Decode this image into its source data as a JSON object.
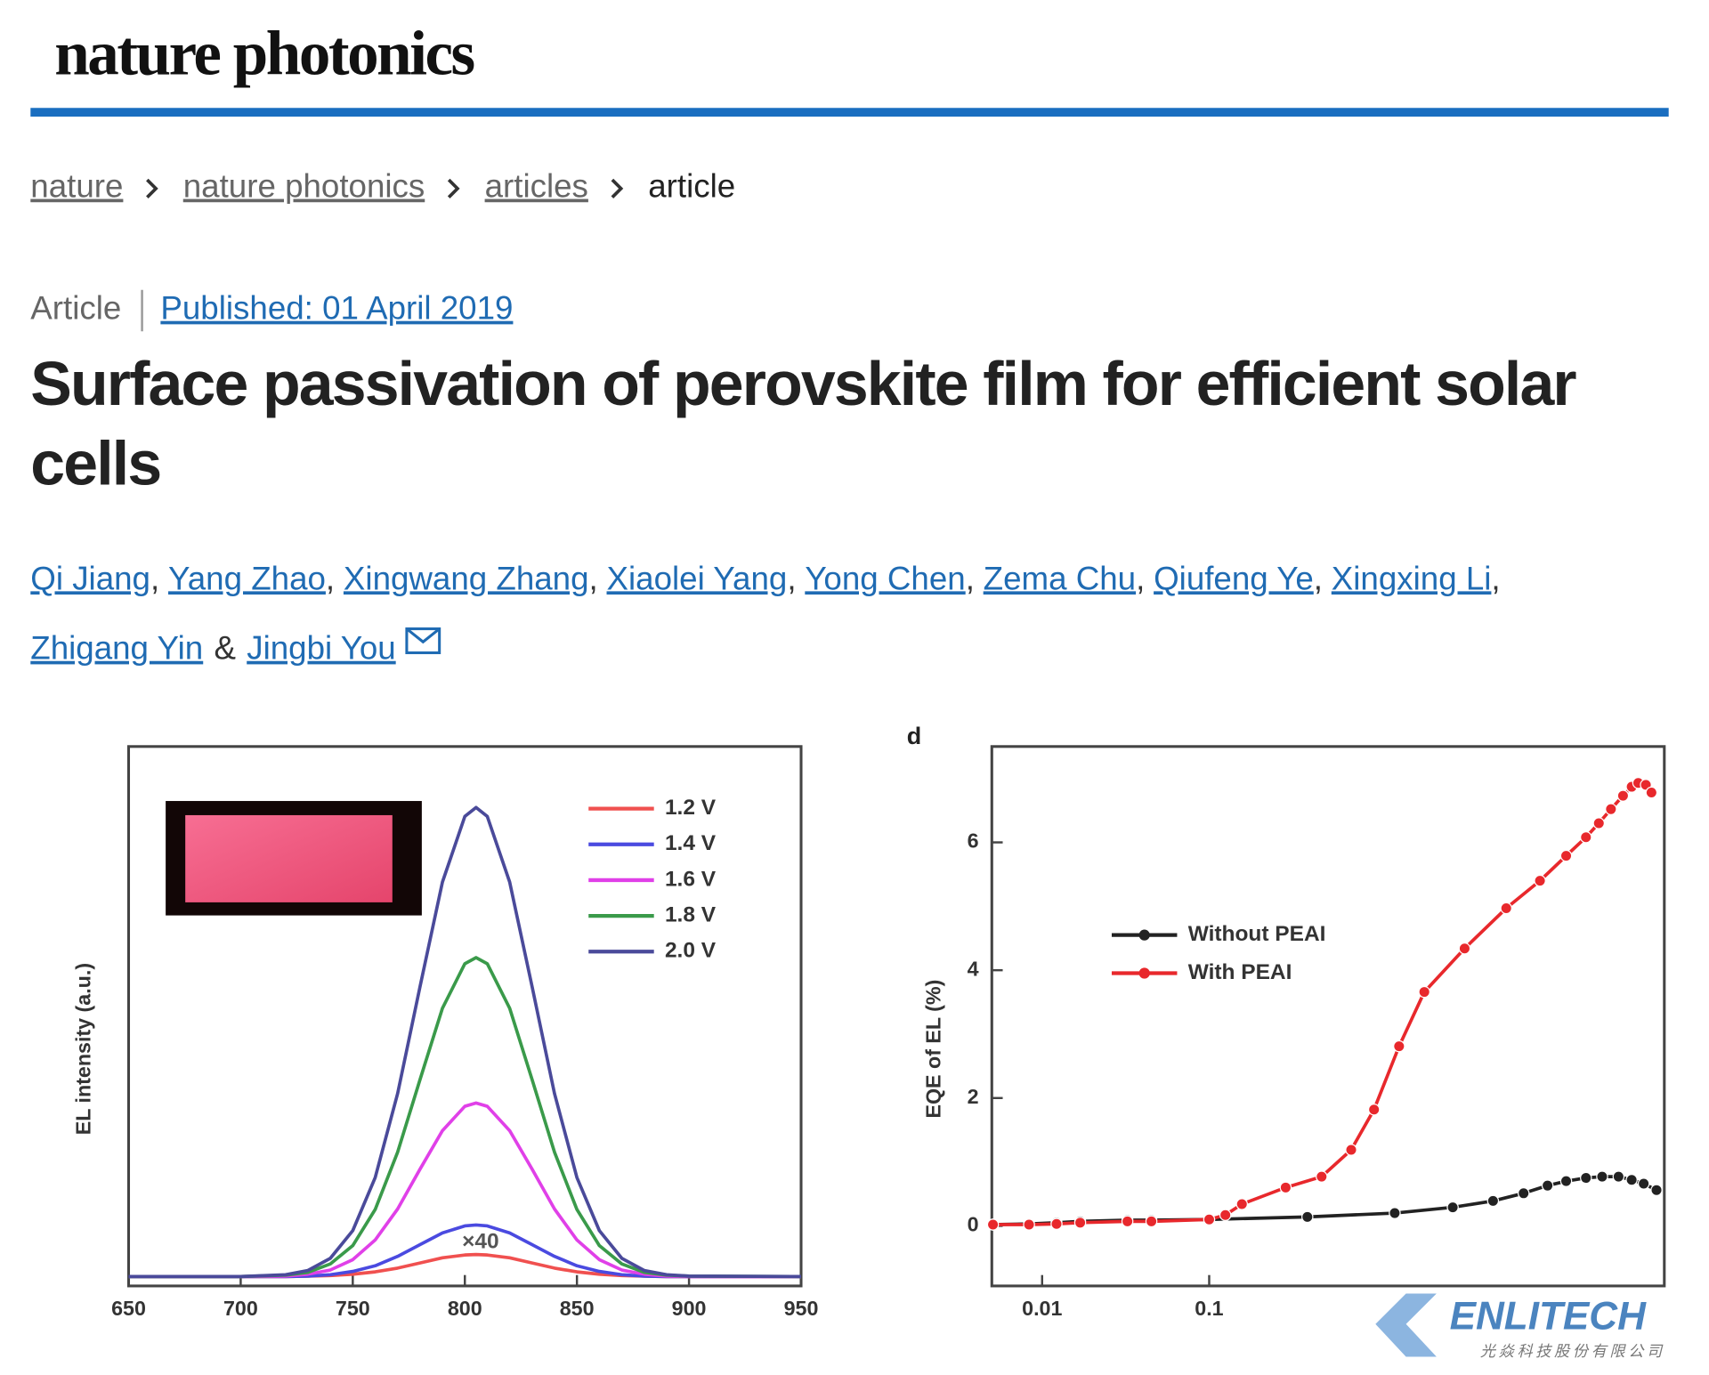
{
  "header": {
    "journal": "nature photonics"
  },
  "breadcrumb": [
    "nature",
    "nature photonics",
    "articles",
    "article"
  ],
  "article": {
    "type": "Article",
    "published": "Published: 01 April 2019",
    "title": "Surface passivation of perovskite film for efficient solar cells",
    "authors": [
      {
        "name": "Qi Jiang",
        "sep": ","
      },
      {
        "name": "Yang Zhao",
        "sep": ","
      },
      {
        "name": "Xingwang Zhang",
        "sep": ","
      },
      {
        "name": "Xiaolei Yang",
        "sep": ","
      },
      {
        "name": "Yong Chen",
        "sep": ","
      },
      {
        "name": "Zema Chu",
        "sep": ","
      },
      {
        "name": "Qiufeng Ye",
        "sep": ","
      },
      {
        "name": "Xingxing Li",
        "sep": ","
      },
      {
        "name": "Zhigang Yin",
        "sep": "&"
      },
      {
        "name": "Jingbi You"
      }
    ]
  },
  "chart_data": [
    {
      "type": "line",
      "y_label": "EL intensity (a.u.)",
      "annotation": "×40",
      "x": [
        650,
        700,
        720,
        730,
        740,
        750,
        760,
        770,
        780,
        790,
        800,
        805,
        810,
        820,
        830,
        840,
        850,
        860,
        870,
        880,
        890,
        900,
        950
      ],
      "xlim": [
        650,
        950
      ],
      "xticks": [
        650,
        700,
        750,
        800,
        850,
        900,
        950
      ],
      "ylim": [
        -0.02,
        1.13
      ],
      "legend": "upper right",
      "series": [
        {
          "name": "1.2 V",
          "color": "#f0504f",
          "values": [
            0,
            0,
            0,
            0.001,
            0.002,
            0.005,
            0.01,
            0.018,
            0.029,
            0.04,
            0.046,
            0.047,
            0.046,
            0.04,
            0.029,
            0.018,
            0.01,
            0.005,
            0.002,
            0.001,
            0,
            0,
            0
          ]
        },
        {
          "name": "1.4 V",
          "color": "#4a4ae0",
          "values": [
            0,
            0,
            0,
            0.001,
            0.004,
            0.011,
            0.023,
            0.043,
            0.068,
            0.093,
            0.108,
            0.11,
            0.108,
            0.093,
            0.068,
            0.043,
            0.023,
            0.011,
            0.004,
            0.001,
            0,
            0,
            0
          ]
        },
        {
          "name": "1.6 V",
          "color": "#e040e8",
          "values": [
            0,
            0,
            0.001,
            0.005,
            0.014,
            0.036,
            0.078,
            0.144,
            0.229,
            0.311,
            0.363,
            0.37,
            0.363,
            0.311,
            0.229,
            0.144,
            0.078,
            0.036,
            0.014,
            0.005,
            0.001,
            0,
            0
          ]
        },
        {
          "name": "1.8 V",
          "color": "#3a9a4a",
          "values": [
            0,
            0,
            0.003,
            0.009,
            0.027,
            0.066,
            0.143,
            0.265,
            0.42,
            0.572,
            0.667,
            0.68,
            0.667,
            0.572,
            0.42,
            0.265,
            0.143,
            0.066,
            0.027,
            0.009,
            0.003,
            0.001,
            0
          ]
        },
        {
          "name": "2.0 V",
          "color": "#4a4a9a",
          "values": [
            0,
            0,
            0.004,
            0.013,
            0.039,
            0.098,
            0.211,
            0.39,
            0.618,
            0.841,
            0.981,
            1.0,
            0.981,
            0.841,
            0.618,
            0.39,
            0.211,
            0.098,
            0.039,
            0.013,
            0.004,
            0.001,
            0
          ]
        }
      ]
    },
    {
      "type": "line",
      "panel_label": "d",
      "y_label": "EQE of EL (%)",
      "xscale": "log",
      "xlim": [
        0.005,
        53
      ],
      "xticks": [
        0.01,
        0.1
      ],
      "ylim": [
        -0.94,
        7.5
      ],
      "yticks": [
        0,
        2,
        4,
        6
      ],
      "legend": "center left",
      "markers": true,
      "series": [
        {
          "name": "Without PEAI",
          "color": "#222222",
          "x": [
            0.00508,
            0.00835,
            0.0122,
            0.0169,
            0.0324,
            0.0451,
            0.1,
            0.387,
            1.29,
            2.87,
            5.0,
            7.62,
            10.6,
            13.7,
            18.0,
            22.5,
            28.2,
            33.8,
            39.9,
            47.6
          ],
          "values": [
            0.02,
            0.03,
            0.05,
            0.07,
            0.09,
            0.09,
            0.1,
            0.14,
            0.2,
            0.29,
            0.39,
            0.51,
            0.63,
            0.7,
            0.75,
            0.77,
            0.77,
            0.72,
            0.66,
            0.56
          ]
        },
        {
          "name": "With PEAI",
          "color": "#e8282c",
          "x": [
            0.00508,
            0.00835,
            0.0122,
            0.0169,
            0.0324,
            0.0451,
            0.1,
            0.125,
            0.157,
            0.287,
            0.471,
            0.708,
            0.97,
            1.37,
            1.94,
            3.38,
            6.0,
            9.55,
            13.7,
            18.0,
            21.5,
            25.4,
            30.0,
            33.8,
            37.0,
            41.1,
            44.4
          ],
          "values": [
            0.02,
            0.02,
            0.03,
            0.05,
            0.07,
            0.07,
            0.1,
            0.17,
            0.34,
            0.6,
            0.77,
            1.19,
            1.82,
            2.81,
            3.66,
            4.34,
            4.97,
            5.4,
            5.79,
            6.08,
            6.3,
            6.52,
            6.73,
            6.87,
            6.93,
            6.9,
            6.78
          ]
        }
      ]
    }
  ],
  "watermark": {
    "brand": "ENLITECH",
    "company": "光焱科技股份有限公司"
  }
}
